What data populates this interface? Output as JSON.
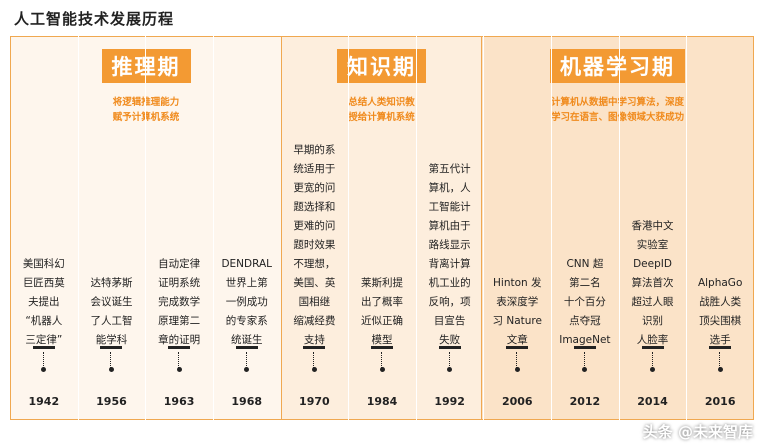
{
  "title": "人工智能技术发展历程",
  "phases": [
    {
      "name": "推理期",
      "desc_lines": [
        "将逻辑推理能力",
        "赋予计算机系统"
      ]
    },
    {
      "name": "知识期",
      "desc_lines": [
        "总结人类知识教",
        "授给计算机系统"
      ]
    },
    {
      "name": "机器学习期",
      "desc_lines": [
        "计算机从数据中学习算法，深度",
        "学习在语言、图像领域大获成功"
      ]
    }
  ],
  "events": [
    {
      "year": "1942",
      "lines": [
        "美国科幻",
        "巨匠西莫",
        "夫提出",
        "“机器人",
        "三定律”"
      ]
    },
    {
      "year": "1956",
      "lines": [
        "达特茅斯",
        "会议诞生",
        "了人工智",
        "能学科"
      ]
    },
    {
      "year": "1963",
      "lines": [
        "自动定律",
        "证明系统",
        "完成数学",
        "原理第二",
        "章的证明"
      ]
    },
    {
      "year": "1968",
      "lines": [
        "DENDRAL",
        "世界上第",
        "一例成功",
        "的专家系",
        "统诞生"
      ]
    },
    {
      "year": "1970",
      "lines": [
        "早期的系",
        "统适用于",
        "更宽的问",
        "题选择和",
        "更难的问",
        "题时效果",
        "不理想，",
        "美国、英",
        "国相继",
        "缩减经费",
        "支持"
      ]
    },
    {
      "year": "1984",
      "lines": [
        "莱斯利提",
        "出了概率",
        "近似正确",
        "模型"
      ]
    },
    {
      "year": "1992",
      "lines": [
        "第五代计",
        "算机，人",
        "工智能计",
        "算机由于",
        "路线显示",
        "背离计算",
        "机工业的",
        "反响，项",
        "目宣告",
        "失败"
      ]
    },
    {
      "year": "2006",
      "lines": [
        "Hinton 发",
        "表深度学",
        "习 Nature",
        "文章"
      ]
    },
    {
      "year": "2012",
      "lines": [
        "CNN 超",
        "第二名",
        "十个百分",
        "点夺冠",
        "ImageNet"
      ]
    },
    {
      "year": "2014",
      "lines": [
        "香港中文",
        "实验室",
        "DeepID",
        "算法首次",
        "超过人眼",
        "识别",
        "人脸率"
      ]
    },
    {
      "year": "2016",
      "lines": [
        "AlphaGo",
        "战胜人类",
        "顶尖围棋",
        "选手"
      ]
    }
  ],
  "watermark": "头条 @未来智库",
  "colors": {
    "accent": "#f39a33",
    "accent_text": "#f08a1c",
    "border": "#f0a850"
  }
}
